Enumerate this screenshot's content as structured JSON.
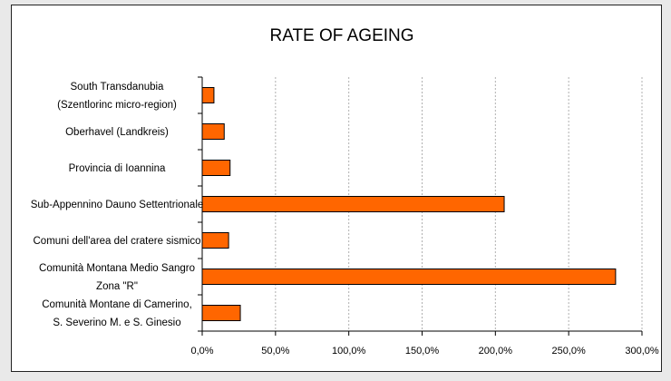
{
  "chart_data": {
    "type": "bar",
    "orientation": "horizontal",
    "title": "RATE OF AGEING",
    "xlabel": "",
    "ylabel": "",
    "categories": [
      [
        "South Transdanubia",
        "(Szentlorinc micro-region)"
      ],
      [
        "Oberhavel (Landkreis)"
      ],
      [
        "Provincia di Ioannina"
      ],
      [
        "Sub-Appennino Dauno Settentrionale"
      ],
      [
        "Comuni dell'area del cratere sismico"
      ],
      [
        "Comunità Montana Medio Sangro",
        "Zona \"R\""
      ],
      [
        "Comunità Montane di Camerino,",
        "S. Severino M. e S. Ginesio"
      ]
    ],
    "values": [
      8,
      15,
      19,
      206,
      18,
      282,
      26
    ],
    "xlim": [
      0,
      300
    ],
    "xticks": [
      0,
      50,
      100,
      150,
      200,
      250,
      300
    ],
    "xtick_labels": [
      "0,0%",
      "50,0%",
      "100,0%",
      "150,0%",
      "200,0%",
      "250,0%",
      "300,0%"
    ],
    "grid": "vertical",
    "legend": "none",
    "bar_color": "#ff6600",
    "bar_edge_color": "#000000",
    "grid_color": "#b0b0b0"
  }
}
